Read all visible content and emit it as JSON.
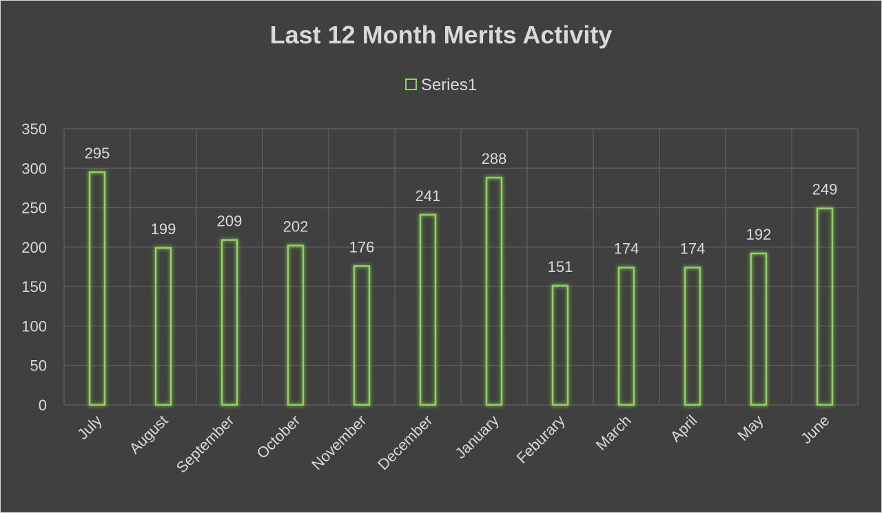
{
  "chart_data": {
    "type": "bar",
    "title": "Last 12 Month Merits Activity",
    "categories": [
      "July",
      "August",
      "September",
      "October",
      "November",
      "December",
      "January",
      "Feburary",
      "March",
      "April",
      "May",
      "June"
    ],
    "series": [
      {
        "name": "Series1",
        "values": [
          295,
          199,
          209,
          202,
          176,
          241,
          288,
          151,
          174,
          174,
          192,
          249
        ]
      }
    ],
    "yticks": [
      "0",
      "50",
      "100",
      "150",
      "200",
      "250",
      "300",
      "350"
    ],
    "ylim": [
      0,
      350
    ],
    "xlabel": "",
    "ylabel": "",
    "grid": true,
    "legend_position": "top",
    "colors": {
      "background": "#404040",
      "bar_outline": "#8bd656",
      "grid": "#5a5a5a",
      "text": "#d9d9d9"
    }
  }
}
